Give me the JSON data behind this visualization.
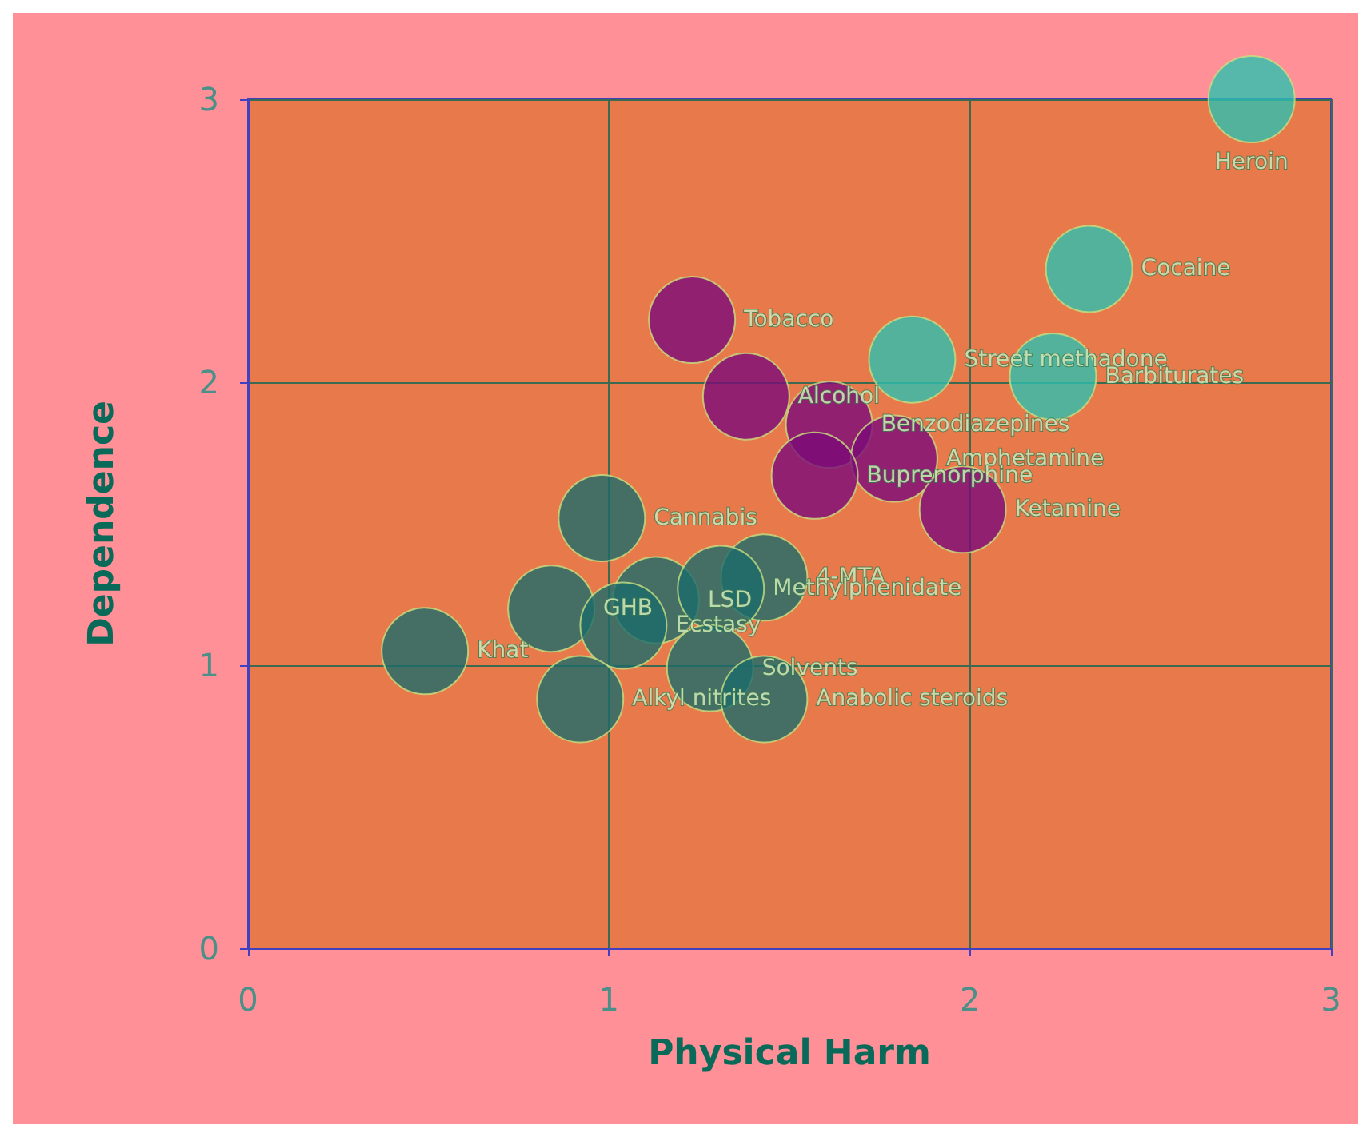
{
  "chart_data": {
    "type": "scatter",
    "xlabel": "Physical Harm",
    "ylabel": "Dependence",
    "xlim": [
      0,
      3
    ],
    "ylim": [
      0,
      3
    ],
    "xticks": [
      0,
      1,
      2,
      3
    ],
    "yticks": [
      0,
      1,
      2,
      3
    ],
    "grid": true,
    "marker": "circle",
    "series": [
      {
        "color": "#2cc0b0",
        "x": [
          2.78,
          2.33,
          1.84,
          2.23
        ],
        "values": [
          3.0,
          2.4,
          2.08,
          2.02
        ]
      },
      {
        "color": "#7b0b79",
        "x": [
          1.23,
          1.38,
          1.61,
          1.79,
          1.57,
          1.98
        ],
        "values": [
          2.22,
          1.95,
          1.85,
          1.73,
          1.67,
          1.55
        ]
      },
      {
        "color": "#1c6b6b",
        "x": [
          0.98,
          1.43,
          1.13,
          1.31,
          0.84,
          1.04,
          0.49,
          1.28,
          0.92,
          1.43
        ],
        "values": [
          1.52,
          1.31,
          1.23,
          1.27,
          1.2,
          1.14,
          1.05,
          0.99,
          0.88,
          0.88
        ]
      }
    ],
    "annotations": [
      {
        "text": "Heroin",
        "x": 2.78,
        "y": 3.0
      },
      {
        "text": "Cocaine",
        "x": 2.33,
        "y": 2.4
      },
      {
        "text": "Street methadone",
        "x": 1.84,
        "y": 2.08
      },
      {
        "text": "Barbiturates",
        "x": 2.23,
        "y": 2.02
      },
      {
        "text": "Tobacco",
        "x": 1.23,
        "y": 2.22
      },
      {
        "text": "Alcohol",
        "x": 1.38,
        "y": 1.95
      },
      {
        "text": "Benzodiazepines",
        "x": 1.61,
        "y": 1.85
      },
      {
        "text": "Amphetamine",
        "x": 1.79,
        "y": 1.73
      },
      {
        "text": "Buprenorphine",
        "x": 1.57,
        "y": 1.67
      },
      {
        "text": "Ketamine",
        "x": 1.98,
        "y": 1.55
      },
      {
        "text": "Cannabis",
        "x": 0.98,
        "y": 1.52
      },
      {
        "text": "4-MTA",
        "x": 1.43,
        "y": 1.31
      },
      {
        "text": "LSD",
        "x": 1.13,
        "y": 1.23
      },
      {
        "text": "Methylphenidate",
        "x": 1.31,
        "y": 1.27
      },
      {
        "text": "GHB",
        "x": 0.84,
        "y": 1.2
      },
      {
        "text": "Ecstasy",
        "x": 1.04,
        "y": 1.14
      },
      {
        "text": "Khat",
        "x": 0.49,
        "y": 1.05
      },
      {
        "text": "Solvents",
        "x": 1.28,
        "y": 0.99
      },
      {
        "text": "Alkyl nitrites",
        "x": 0.92,
        "y": 0.88
      },
      {
        "text": "Anabolic steroids",
        "x": 1.43,
        "y": 0.88
      }
    ]
  }
}
